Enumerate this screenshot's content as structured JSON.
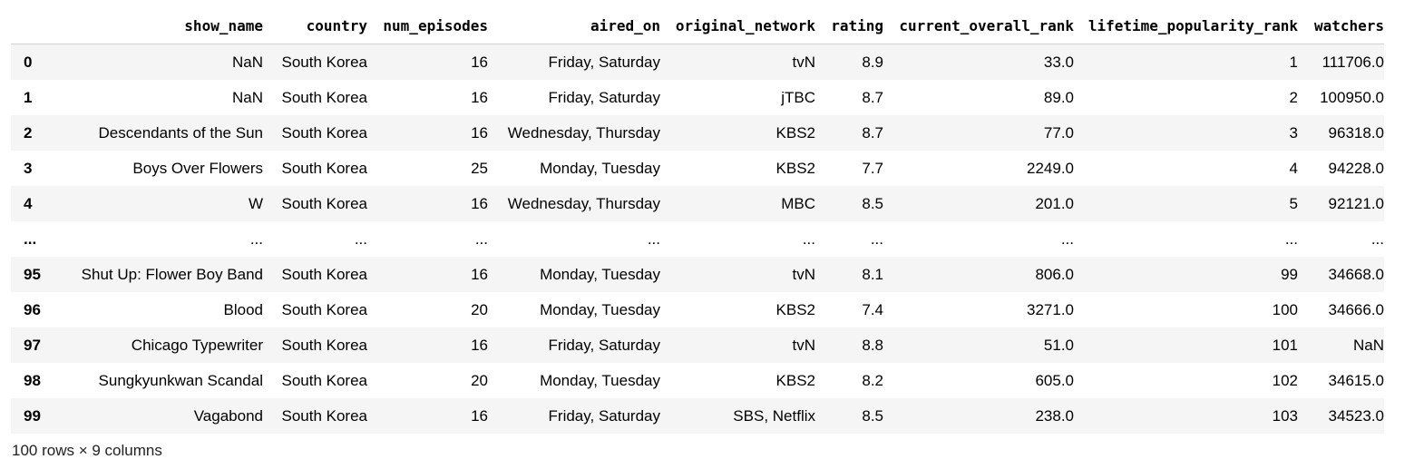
{
  "table": {
    "columns": [
      "",
      "show_name",
      "country",
      "num_episodes",
      "aired_on",
      "original_network",
      "rating",
      "current_overall_rank",
      "lifetime_popularity_rank",
      "watchers"
    ],
    "rows": [
      [
        "0",
        "NaN",
        "South Korea",
        "16",
        "Friday, Saturday",
        "tvN",
        "8.9",
        "33.0",
        "1",
        "111706.0"
      ],
      [
        "1",
        "NaN",
        "South Korea",
        "16",
        "Friday, Saturday",
        "jTBC",
        "8.7",
        "89.0",
        "2",
        "100950.0"
      ],
      [
        "2",
        "Descendants of the Sun",
        "South Korea",
        "16",
        "Wednesday, Thursday",
        "KBS2",
        "8.7",
        "77.0",
        "3",
        "96318.0"
      ],
      [
        "3",
        "Boys Over Flowers",
        "South Korea",
        "25",
        "Monday, Tuesday",
        "KBS2",
        "7.7",
        "2249.0",
        "4",
        "94228.0"
      ],
      [
        "4",
        "W",
        "South Korea",
        "16",
        "Wednesday, Thursday",
        "MBC",
        "8.5",
        "201.0",
        "5",
        "92121.0"
      ],
      [
        "...",
        "...",
        "...",
        "...",
        "...",
        "...",
        "...",
        "...",
        "...",
        "..."
      ],
      [
        "95",
        "Shut Up: Flower Boy Band",
        "South Korea",
        "16",
        "Monday, Tuesday",
        "tvN",
        "8.1",
        "806.0",
        "99",
        "34668.0"
      ],
      [
        "96",
        "Blood",
        "South Korea",
        "20",
        "Monday, Tuesday",
        "KBS2",
        "7.4",
        "3271.0",
        "100",
        "34666.0"
      ],
      [
        "97",
        "Chicago Typewriter",
        "South Korea",
        "16",
        "Friday, Saturday",
        "tvN",
        "8.8",
        "51.0",
        "101",
        "NaN"
      ],
      [
        "98",
        "Sungkyunkwan Scandal",
        "South Korea",
        "20",
        "Monday, Tuesday",
        "KBS2",
        "8.2",
        "605.0",
        "102",
        "34615.0"
      ],
      [
        "99",
        "Vagabond",
        "South Korea",
        "16",
        "Friday, Saturday",
        "SBS, Netflix",
        "8.5",
        "238.0",
        "103",
        "34523.0"
      ]
    ]
  },
  "footer": {
    "shape_text": "100 rows × 9 columns"
  },
  "colors": {
    "row_stripe": "#f5f5f5",
    "row_plain": "#ffffff",
    "header_border": "#d0d0d0"
  }
}
